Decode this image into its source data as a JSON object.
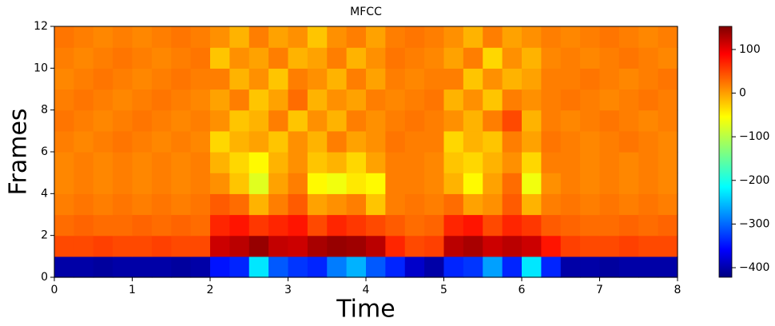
{
  "chart_data": {
    "type": "heatmap",
    "title": "MFCC",
    "x_label": "Time",
    "y_label": "Frames",
    "xlim": [
      0,
      8
    ],
    "xticks": [
      0,
      1,
      2,
      3,
      4,
      5,
      6,
      7,
      8
    ],
    "ylim": [
      0,
      12
    ],
    "yticks": [
      0,
      2,
      4,
      6,
      8,
      10,
      12
    ],
    "colormap": "jet",
    "zlim": [
      -422,
      153
    ],
    "colorbar_ticks": [
      -400,
      -300,
      -200,
      -100,
      0,
      100
    ],
    "z": [
      [
        -400,
        -400,
        -405,
        -400,
        -400,
        -400,
        -405,
        -400,
        -340,
        -330,
        -220,
        -300,
        -320,
        -330,
        -280,
        -250,
        -300,
        -330,
        -380,
        -400,
        -330,
        -320,
        -260,
        -330,
        -220,
        -330,
        -400,
        -400,
        -405,
        -400,
        -400,
        -400
      ],
      [
        40,
        40,
        45,
        40,
        40,
        45,
        40,
        40,
        110,
        120,
        140,
        115,
        110,
        130,
        140,
        135,
        120,
        60,
        40,
        45,
        120,
        130,
        110,
        120,
        110,
        70,
        45,
        40,
        40,
        45,
        40,
        40
      ],
      [
        20,
        25,
        20,
        20,
        25,
        20,
        25,
        20,
        60,
        70,
        50,
        60,
        70,
        40,
        60,
        50,
        40,
        30,
        20,
        25,
        60,
        70,
        40,
        60,
        50,
        30,
        25,
        20,
        20,
        25,
        20,
        25
      ],
      [
        10,
        15,
        10,
        15,
        10,
        15,
        10,
        15,
        30,
        20,
        -20,
        10,
        30,
        -10,
        0,
        10,
        -30,
        10,
        15,
        10,
        20,
        -10,
        0,
        30,
        -20,
        10,
        15,
        10,
        15,
        10,
        15,
        10
      ],
      [
        5,
        10,
        5,
        10,
        5,
        10,
        5,
        10,
        0,
        -30,
        -80,
        -10,
        10,
        -60,
        -70,
        -50,
        -60,
        10,
        10,
        5,
        -20,
        -60,
        -10,
        20,
        -70,
        0,
        10,
        5,
        10,
        5,
        10,
        5
      ],
      [
        5,
        10,
        5,
        10,
        5,
        10,
        5,
        10,
        -20,
        -40,
        -60,
        -20,
        0,
        -30,
        -20,
        -40,
        -10,
        10,
        10,
        5,
        -30,
        -40,
        -20,
        0,
        -40,
        10,
        10,
        5,
        10,
        5,
        10,
        5
      ],
      [
        10,
        5,
        10,
        15,
        10,
        5,
        10,
        5,
        -40,
        -20,
        -10,
        -30,
        0,
        -20,
        10,
        -10,
        0,
        15,
        10,
        10,
        -40,
        -20,
        -30,
        10,
        -10,
        15,
        10,
        5,
        10,
        15,
        10,
        5
      ],
      [
        15,
        10,
        5,
        10,
        15,
        10,
        5,
        10,
        0,
        -30,
        -20,
        10,
        -30,
        0,
        -20,
        10,
        0,
        10,
        15,
        10,
        0,
        -20,
        10,
        40,
        -20,
        10,
        5,
        10,
        15,
        10,
        5,
        10
      ],
      [
        10,
        15,
        10,
        5,
        10,
        15,
        10,
        5,
        -10,
        10,
        -30,
        -10,
        20,
        -20,
        0,
        -10,
        10,
        5,
        10,
        15,
        -20,
        0,
        -30,
        10,
        0,
        10,
        15,
        10,
        5,
        10,
        15,
        10
      ],
      [
        5,
        10,
        15,
        10,
        5,
        10,
        15,
        10,
        10,
        -20,
        0,
        -30,
        10,
        0,
        -20,
        10,
        -10,
        10,
        5,
        10,
        10,
        -30,
        0,
        -20,
        -10,
        10,
        10,
        15,
        10,
        5,
        10,
        15
      ],
      [
        10,
        5,
        10,
        15,
        10,
        5,
        10,
        15,
        -30,
        0,
        -10,
        10,
        -20,
        -10,
        10,
        -20,
        0,
        15,
        10,
        5,
        -10,
        10,
        -40,
        0,
        -20,
        5,
        10,
        5,
        10,
        15,
        10,
        5
      ],
      [
        15,
        10,
        5,
        10,
        5,
        10,
        15,
        10,
        0,
        -20,
        10,
        -10,
        0,
        -30,
        0,
        10,
        -10,
        10,
        15,
        10,
        0,
        -20,
        10,
        -10,
        0,
        10,
        5,
        10,
        15,
        10,
        5,
        10
      ]
    ]
  }
}
